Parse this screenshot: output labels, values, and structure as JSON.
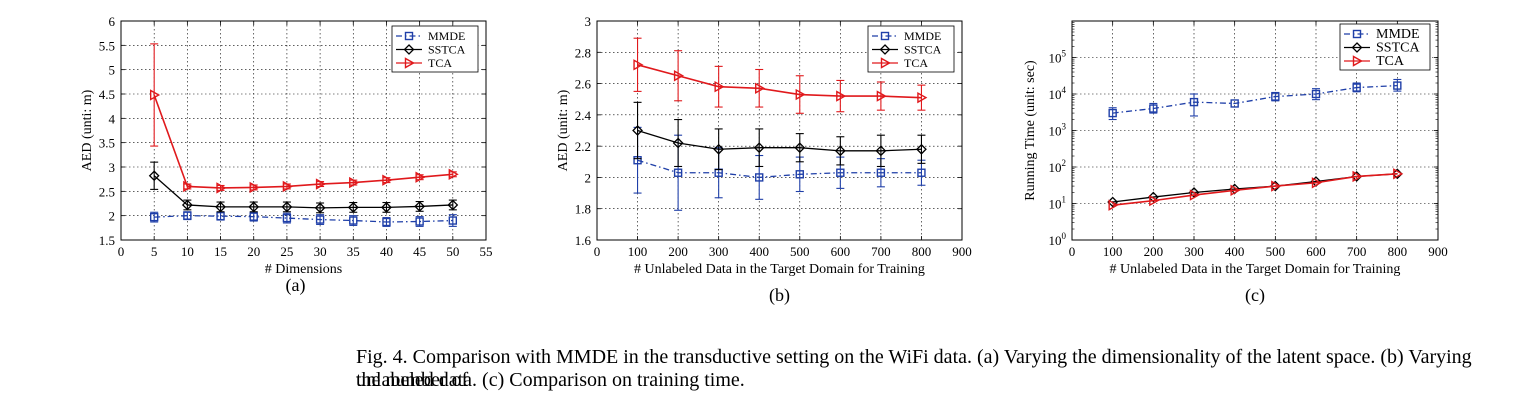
{
  "colors": {
    "MMDE": "#1f3fa8",
    "SSTCA": "#000000",
    "TCA": "#e0191c"
  },
  "chart_data": [
    {
      "type": "line",
      "panel_label": "(a)",
      "xlabel": "# Dimensions",
      "ylabel": "AED (unti: m)",
      "xlim": [
        0,
        55
      ],
      "ylim": [
        1.5,
        6
      ],
      "xticks": [
        "0",
        "5",
        "10",
        "15",
        "20",
        "25",
        "30",
        "35",
        "40",
        "45",
        "50",
        "55"
      ],
      "yticks": [
        "1.5",
        "2",
        "2.5",
        "3",
        "3.5",
        "4",
        "4.5",
        "5",
        "5.5",
        "6"
      ],
      "grid": true,
      "legend_position": "top-right",
      "yscale": "linear",
      "x": [
        5,
        10,
        15,
        20,
        25,
        30,
        35,
        40,
        45,
        50
      ],
      "series": [
        {
          "name": "MMDE",
          "marker": "square",
          "dash": "dashdot",
          "values": [
            1.97,
            2.0,
            1.99,
            1.98,
            1.95,
            1.92,
            1.9,
            1.87,
            1.88,
            1.9
          ],
          "error": [
            0.1,
            0.08,
            0.08,
            0.09,
            0.1,
            0.1,
            0.1,
            0.09,
            0.1,
            0.12
          ]
        },
        {
          "name": "SSTCA",
          "marker": "diamond",
          "dash": "solid",
          "values": [
            2.82,
            2.22,
            2.18,
            2.18,
            2.18,
            2.16,
            2.17,
            2.17,
            2.19,
            2.22
          ],
          "error": [
            0.28,
            0.1,
            0.1,
            0.1,
            0.1,
            0.1,
            0.1,
            0.1,
            0.1,
            0.1
          ]
        },
        {
          "name": "TCA",
          "marker": "triangle",
          "dash": "solid",
          "values": [
            4.48,
            2.6,
            2.57,
            2.58,
            2.6,
            2.65,
            2.68,
            2.73,
            2.79,
            2.85
          ],
          "error": [
            1.05,
            0.05,
            0.05,
            0.05,
            0.05,
            0.05,
            0.05,
            0.05,
            0.05,
            0.05
          ]
        }
      ]
    },
    {
      "type": "line",
      "panel_label": "(b)",
      "xlabel": "# Unlabeled Data in the Target Domain for Training",
      "ylabel": "AED (unit: m)",
      "xlim": [
        0,
        900
      ],
      "ylim": [
        1.6,
        3.0
      ],
      "xticks": [
        "0",
        "100",
        "200",
        "300",
        "400",
        "500",
        "600",
        "700",
        "800",
        "900"
      ],
      "yticks": [
        "1.6",
        "1.8",
        "2",
        "2.2",
        "2.4",
        "2.6",
        "2.8",
        "3"
      ],
      "grid": true,
      "legend_position": "top-right",
      "yscale": "linear",
      "x": [
        100,
        200,
        300,
        400,
        500,
        600,
        700,
        800
      ],
      "series": [
        {
          "name": "MMDE",
          "marker": "square",
          "dash": "dashdot",
          "values": [
            2.11,
            2.03,
            2.03,
            2.0,
            2.02,
            2.03,
            2.03,
            2.03
          ],
          "error": [
            0.21,
            0.24,
            0.16,
            0.14,
            0.11,
            0.1,
            0.09,
            0.08
          ]
        },
        {
          "name": "SSTCA",
          "marker": "diamond",
          "dash": "solid",
          "values": [
            2.3,
            2.22,
            2.18,
            2.19,
            2.19,
            2.17,
            2.17,
            2.18
          ],
          "error": [
            0.18,
            0.15,
            0.13,
            0.12,
            0.09,
            0.09,
            0.1,
            0.09
          ]
        },
        {
          "name": "TCA",
          "marker": "triangle",
          "dash": "solid",
          "values": [
            2.72,
            2.65,
            2.58,
            2.57,
            2.53,
            2.52,
            2.52,
            2.51
          ],
          "error": [
            0.17,
            0.16,
            0.13,
            0.12,
            0.12,
            0.1,
            0.09,
            0.08
          ]
        }
      ]
    },
    {
      "type": "line",
      "panel_label": "(c)",
      "xlabel": "# Unlabeled Data in the Target Domain for Training",
      "ylabel": "Running Time (unit: sec)",
      "xlim": [
        0,
        900
      ],
      "ylim": [
        1,
        1000000
      ],
      "xticks": [
        "0",
        "100",
        "200",
        "300",
        "400",
        "500",
        "600",
        "700",
        "800",
        "900"
      ],
      "yticks": [
        {
          "base": "10",
          "exp": "0"
        },
        {
          "base": "10",
          "exp": "1"
        },
        {
          "base": "10",
          "exp": "2"
        },
        {
          "base": "10",
          "exp": "3"
        },
        {
          "base": "10",
          "exp": "4"
        },
        {
          "base": "10",
          "exp": "5"
        }
      ],
      "grid": true,
      "legend_position": "top-right",
      "yscale": "log",
      "x": [
        100,
        200,
        300,
        400,
        500,
        600,
        700,
        800
      ],
      "series": [
        {
          "name": "MMDE",
          "marker": "square",
          "dash": "dashdot",
          "values": [
            3000,
            4000,
            6000,
            5500,
            8500,
            10000,
            15000,
            17000
          ],
          "err_lo": [
            2000,
            3000,
            2500,
            5500,
            6500,
            7000,
            11500,
            12000
          ],
          "err_hi": [
            4200,
            5500,
            10000,
            5500,
            11000,
            14000,
            20000,
            25000
          ]
        },
        {
          "name": "SSTCA",
          "marker": "diamond",
          "dash": "solid",
          "values": [
            11,
            15,
            20,
            25,
            30,
            40,
            55,
            65
          ],
          "err_lo": [
            11,
            15,
            20,
            25,
            30,
            40,
            55,
            65
          ],
          "err_hi": [
            11,
            15,
            20,
            25,
            30,
            40,
            55,
            65
          ]
        },
        {
          "name": "TCA",
          "marker": "triangle",
          "dash": "solid",
          "values": [
            9,
            12,
            17,
            23,
            30,
            37,
            55,
            65
          ],
          "err_lo": [
            9,
            12,
            17,
            23,
            30,
            37,
            55,
            65
          ],
          "err_hi": [
            9,
            12,
            17,
            23,
            30,
            37,
            55,
            65
          ]
        }
      ]
    }
  ],
  "caption": {
    "line1": "Fig. 4.   Comparison with MMDE in the transductive setting on the WiFi data. (a) Varying the dimensionality of the latent space. (b) Varying the number of",
    "line2": "unlabeled data. (c) Comparison on training time."
  }
}
